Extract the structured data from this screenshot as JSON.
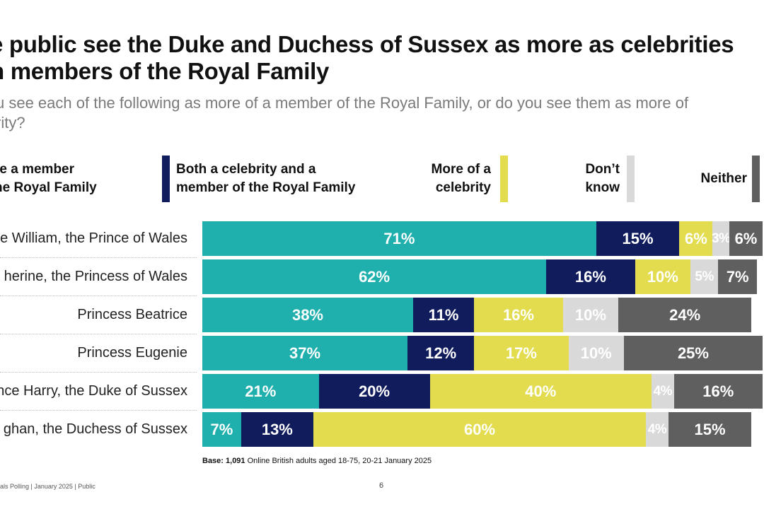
{
  "title": "e public see the Duke and Duchess of Sussex as more as celebrities\nn members of the Royal Family",
  "subtitle": "u see each of the following as more of a member of the Royal Family, or do you see them as more of\nrity?",
  "legend": [
    {
      "label": "re a member\nhe Royal Family",
      "color": "#1fb0ae"
    },
    {
      "label": "Both a celebrity and a\nmember of the Royal Family",
      "color": "#111c5c"
    },
    {
      "label": "More of a\ncelebrity",
      "color": "#e2dc4e"
    },
    {
      "label": "Don’t\nknow",
      "color": "#d9d9d9"
    },
    {
      "label": "Neither",
      "color": "#5f5f5f"
    }
  ],
  "footnote": {
    "bold": "Base: 1,091",
    "text": " Online British adults aged 18-75, 20-21 January 2025"
  },
  "footer": {
    "left": "als Polling | January 2025 | Public",
    "page": "6"
  },
  "chart_data": {
    "type": "bar",
    "orientation": "horizontal",
    "stacked": true,
    "categories": [
      "e William, the Prince of Wales",
      "herine, the Princess of Wales",
      "Princess Beatrice",
      "Princess Eugenie",
      "nce Harry, the Duke of Sussex",
      "ghan, the Duchess of Sussex"
    ],
    "series": [
      {
        "name": "re a member he Royal Family",
        "color": "#1fb0ae",
        "text_color": "#ffffff",
        "values": [
          71,
          62,
          38,
          37,
          21,
          7
        ]
      },
      {
        "name": "Both a celebrity and a member of the Royal Family",
        "color": "#111c5c",
        "text_color": "#ffffff",
        "values": [
          15,
          16,
          11,
          12,
          20,
          13
        ]
      },
      {
        "name": "More of a celebrity",
        "color": "#e2dc4e",
        "text_color": "#ffffff",
        "values": [
          6,
          10,
          16,
          17,
          40,
          60
        ]
      },
      {
        "name": "Don’t know",
        "color": "#d9d9d9",
        "text_color": "#ffffff",
        "values": [
          3,
          5,
          10,
          10,
          4,
          4
        ]
      },
      {
        "name": "Neither",
        "color": "#5f5f5f",
        "text_color": "#ffffff",
        "values": [
          6,
          7,
          24,
          25,
          16,
          15
        ]
      }
    ],
    "value_suffix": "%",
    "xlim": [
      0,
      101
    ]
  }
}
